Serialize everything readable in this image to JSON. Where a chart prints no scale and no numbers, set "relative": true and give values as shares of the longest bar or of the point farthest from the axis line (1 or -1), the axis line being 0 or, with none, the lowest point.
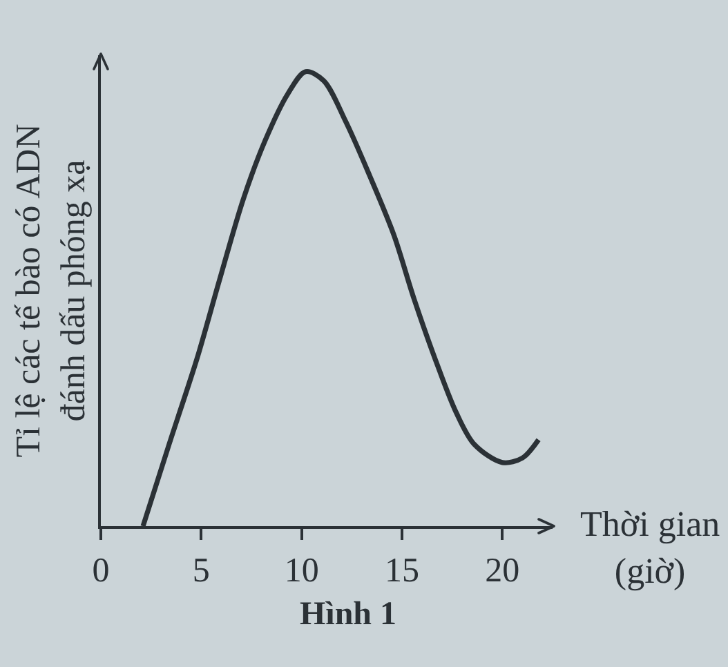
{
  "chart_data": {
    "type": "line",
    "xlabel": "Thời gian\n(giờ)",
    "ylabel": "Tỉ lệ các tế bào có ADN\nđánh dấu phóng xạ",
    "annotations": [
      "Hình 1"
    ],
    "relative": true,
    "x": [
      2.1,
      3.4,
      4.8,
      5.9,
      7.1,
      8.2,
      9.3,
      10.2,
      11.1,
      12.2,
      13.4,
      14.6,
      15.6,
      16.8,
      17.7,
      18.6,
      20.0,
      21.0,
      21.8
    ],
    "xlim": [
      0,
      22.5
    ],
    "xticks": [
      0,
      5,
      10,
      15,
      20
    ],
    "series": [
      {
        "color": "#2b3136",
        "values": [
          0.0,
          0.18,
          0.37,
          0.54,
          0.72,
          0.85,
          0.95,
          1.0,
          0.98,
          0.89,
          0.77,
          0.64,
          0.5,
          0.35,
          0.25,
          0.18,
          0.14,
          0.15,
          0.19
        ]
      }
    ],
    "grid": false,
    "marker": "none",
    "line_style": "solid"
  }
}
